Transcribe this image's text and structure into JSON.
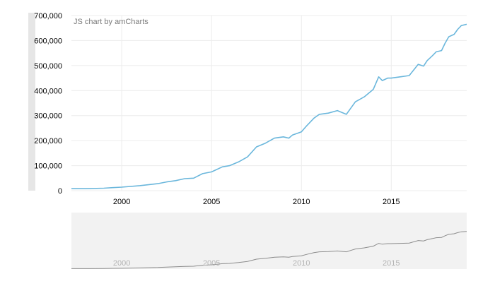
{
  "credit": "JS chart by amCharts",
  "colors": {
    "series": "#6bb7dc",
    "grid": "#ececec",
    "y_scrollbar": "#e6e6e6",
    "scrollbar_bg": "#f2f2f2",
    "scrollbar_series": "#8c8c8c",
    "scrollbar_labels": "#b3b3b3"
  },
  "chart_data": {
    "type": "line",
    "title": "",
    "xlabel": "",
    "ylabel": "",
    "xlim": [
      1997.2,
      2019.2
    ],
    "ylim": [
      0,
      700000
    ],
    "grid": true,
    "legend": "none",
    "y_ticks": [
      0,
      100000,
      200000,
      300000,
      400000,
      500000,
      600000,
      700000
    ],
    "y_tick_labels": [
      "0",
      "100,000",
      "200,000",
      "300,000",
      "400,000",
      "500,000",
      "600,000",
      "700,000"
    ],
    "x_ticks": [
      2000,
      2005,
      2010,
      2015
    ],
    "x_tick_labels": [
      "2000",
      "2005",
      "2010",
      "2015"
    ],
    "series": [
      {
        "x": [
          1997.2,
          1998.0,
          1999.0,
          1999.5,
          2000.0,
          2001.0,
          2002.0,
          2002.5,
          2003.0,
          2003.5,
          2004.0,
          2004.5,
          2005.0,
          2005.3,
          2005.6,
          2006.0,
          2006.5,
          2007.0,
          2007.5,
          2008.0,
          2008.5,
          2009.0,
          2009.3,
          2009.5,
          2010.0,
          2010.3,
          2010.7,
          2011.0,
          2011.5,
          2012.0,
          2012.5,
          2012.8,
          2013.0,
          2013.5,
          2014.0,
          2014.3,
          2014.5,
          2014.8,
          2015.0,
          2015.5,
          2016.0,
          2016.5,
          2016.8,
          2017.0,
          2017.3,
          2017.5,
          2017.8,
          2018.0,
          2018.2,
          2018.5,
          2018.7,
          2018.9,
          2019.2
        ],
        "values": [
          8000,
          8000,
          10000,
          12000,
          14000,
          20000,
          28000,
          35000,
          40000,
          48000,
          50000,
          68000,
          75000,
          85000,
          95000,
          100000,
          115000,
          135000,
          175000,
          190000,
          210000,
          215000,
          210000,
          222000,
          235000,
          260000,
          290000,
          305000,
          310000,
          320000,
          305000,
          335000,
          355000,
          375000,
          405000,
          455000,
          440000,
          450000,
          450000,
          455000,
          460000,
          505000,
          498000,
          520000,
          540000,
          555000,
          560000,
          590000,
          615000,
          625000,
          645000,
          660000,
          665000
        ]
      }
    ]
  }
}
